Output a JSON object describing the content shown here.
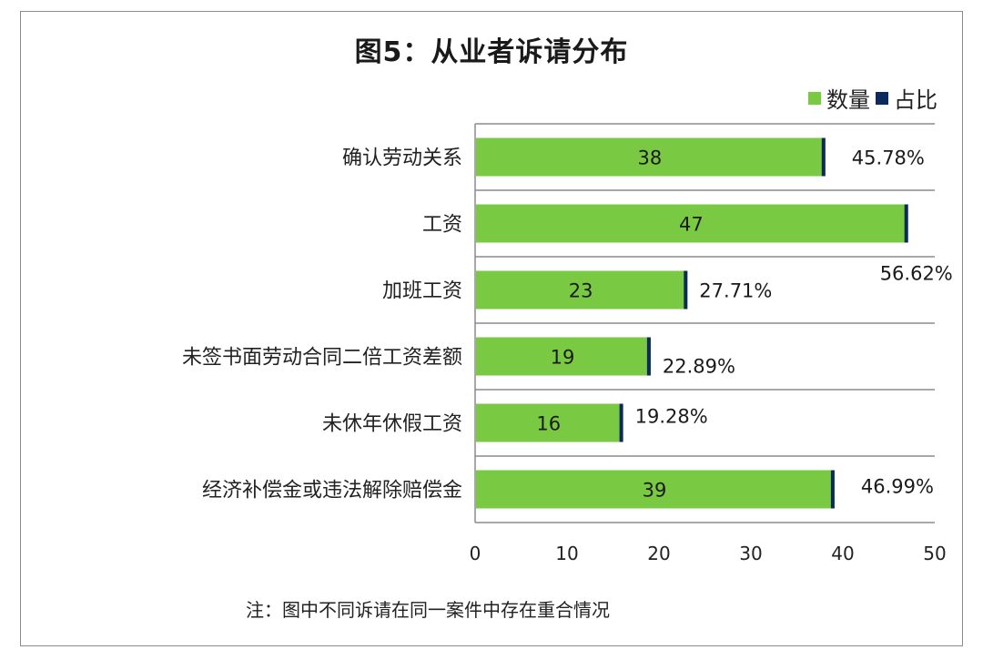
{
  "chart_data": {
    "type": "bar",
    "orientation": "horizontal",
    "title": "图5：从业者诉请分布",
    "categories": [
      "确认劳动关系",
      "工资",
      "加班工资",
      "未签书面劳动合同二倍工资差额",
      "未休年休假工资",
      "经济补偿金或违法解除赔偿金"
    ],
    "series": [
      {
        "name": "数量",
        "values": [
          38,
          47,
          23,
          19,
          16,
          39
        ],
        "color": "#7ac943"
      },
      {
        "name": "占比",
        "values": [
          "45.78%",
          "56.62%",
          "27.71%",
          "22.89%",
          "19.28%",
          "46.99%"
        ],
        "color": "#0c2a5b"
      }
    ],
    "xlim": [
      0,
      50
    ],
    "xticks": [
      0,
      10,
      20,
      30,
      40,
      50
    ],
    "grid": true,
    "legend_position": "top-right",
    "note": "注：图中不同诉请在同一案件中存在重合情况"
  }
}
